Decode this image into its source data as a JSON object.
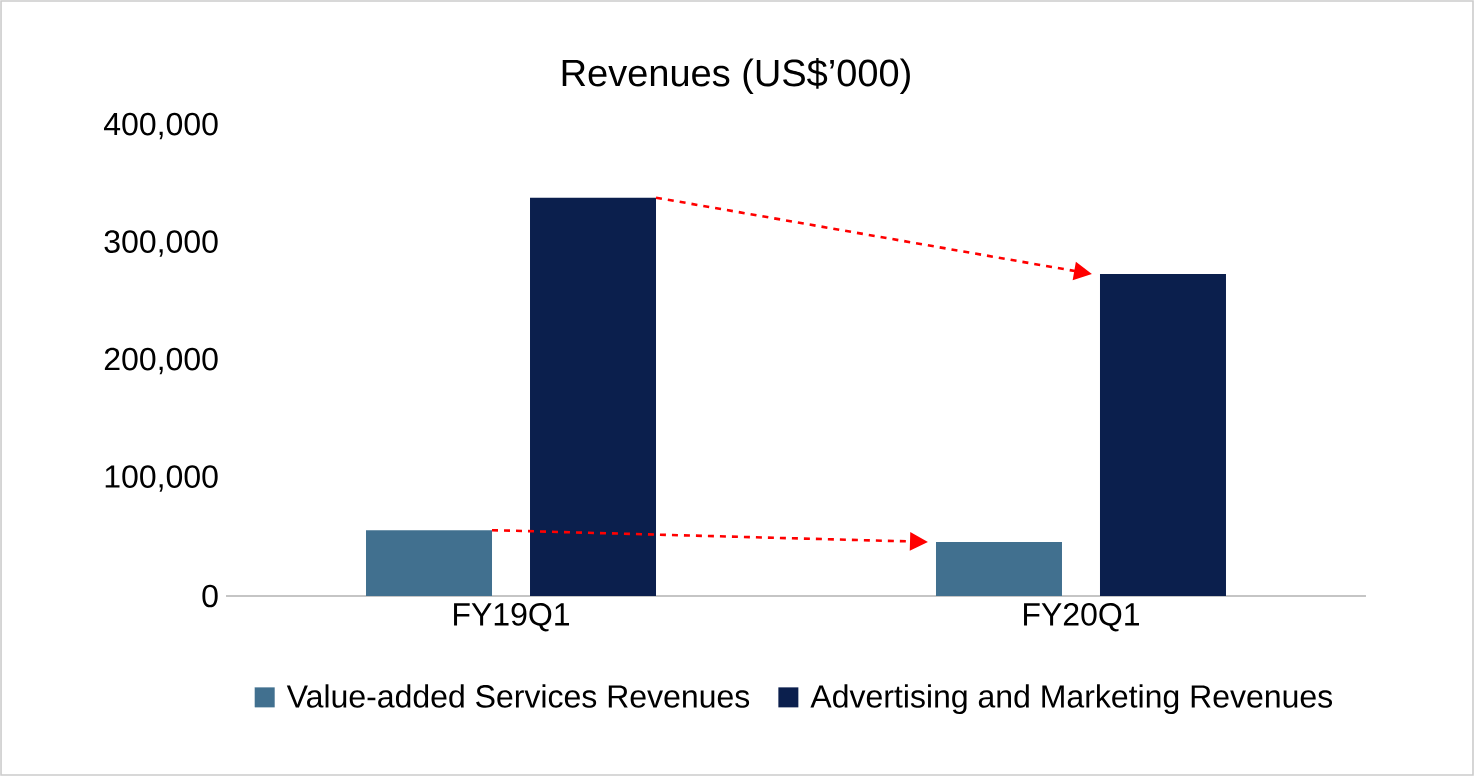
{
  "chart_data": {
    "type": "bar",
    "title": "Revenues (US$’000)",
    "categories": [
      "FY19Q1",
      "FY20Q1"
    ],
    "series": [
      {
        "name": "Value-added Services Revenues",
        "color": "#41708f",
        "values": [
          56000,
          46000
        ]
      },
      {
        "name": "Advertising and Marketing Revenues",
        "color": "#0b1f4d",
        "values": [
          339000,
          274000
        ]
      }
    ],
    "ylim": [
      0,
      400000
    ],
    "yticks": [
      {
        "value": 0,
        "label": "0"
      },
      {
        "value": 100000,
        "label": "100,000"
      },
      {
        "value": 200000,
        "label": "200,000"
      },
      {
        "value": 300000,
        "label": "300,000"
      },
      {
        "value": 400000,
        "label": "400,000"
      }
    ],
    "grid": false,
    "legend": "bottom"
  }
}
